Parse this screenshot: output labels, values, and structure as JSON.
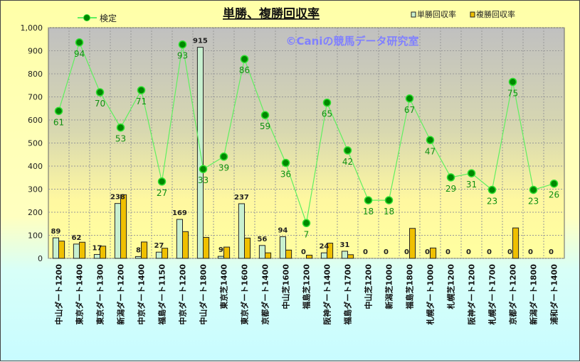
{
  "chart_data": {
    "type": "bar+line",
    "title": "単勝、複勝回収率",
    "watermark": "©Caniの競馬データ研究室",
    "ylim": [
      0,
      1000
    ],
    "yticks": [
      "0",
      "100",
      "200",
      "300",
      "400",
      "500",
      "600",
      "700",
      "800",
      "900",
      "1,000"
    ],
    "grid": true,
    "legend_placement": "top",
    "categories": [
      "中山ダート1200",
      "東京ダート1400",
      "東京ダート1300",
      "新潟ダート1200",
      "中京ダート1400",
      "福島ダート1150",
      "中京ダート1200",
      "中山ダート1800",
      "東京芝1400",
      "東京ダート1600",
      "京都ダート1400",
      "中山芝1600",
      "福島芝1200",
      "阪神ダート1400",
      "福島ダート1700",
      "中山芝1200",
      "新潟芝1000",
      "福島芝1800",
      "札幌ダート1000",
      "札幌芝1200",
      "阪神ダート1200",
      "札幌ダート1700",
      "京都ダート1200",
      "新潟ダート1800",
      "浦和ダート1400"
    ],
    "series": [
      {
        "name": "単勝回収率",
        "type": "bar",
        "color": "#c8f0d0",
        "values": [
          89,
          62,
          17,
          238,
          8,
          27,
          169,
          915,
          9,
          237,
          56,
          94,
          0,
          24,
          31,
          0,
          0,
          0,
          0,
          0,
          0,
          0,
          0,
          0,
          0
        ]
      },
      {
        "name": "複勝回収率",
        "type": "bar",
        "color": "#f0c000",
        "values": [
          75,
          70,
          53,
          276,
          71,
          44,
          116,
          91,
          49,
          88,
          24,
          36,
          14,
          66,
          16,
          0,
          0,
          130,
          45,
          0,
          0,
          0,
          132,
          0,
          0
        ]
      },
      {
        "name": "検定",
        "type": "line",
        "color": "#00a000",
        "axis": "secondary",
        "values": [
          61,
          94,
          70,
          53,
          71,
          27,
          93,
          33,
          39,
          86,
          59,
          36,
          7,
          65,
          42,
          18,
          18,
          67,
          47,
          29,
          31,
          23,
          75,
          23,
          26
        ]
      }
    ]
  }
}
